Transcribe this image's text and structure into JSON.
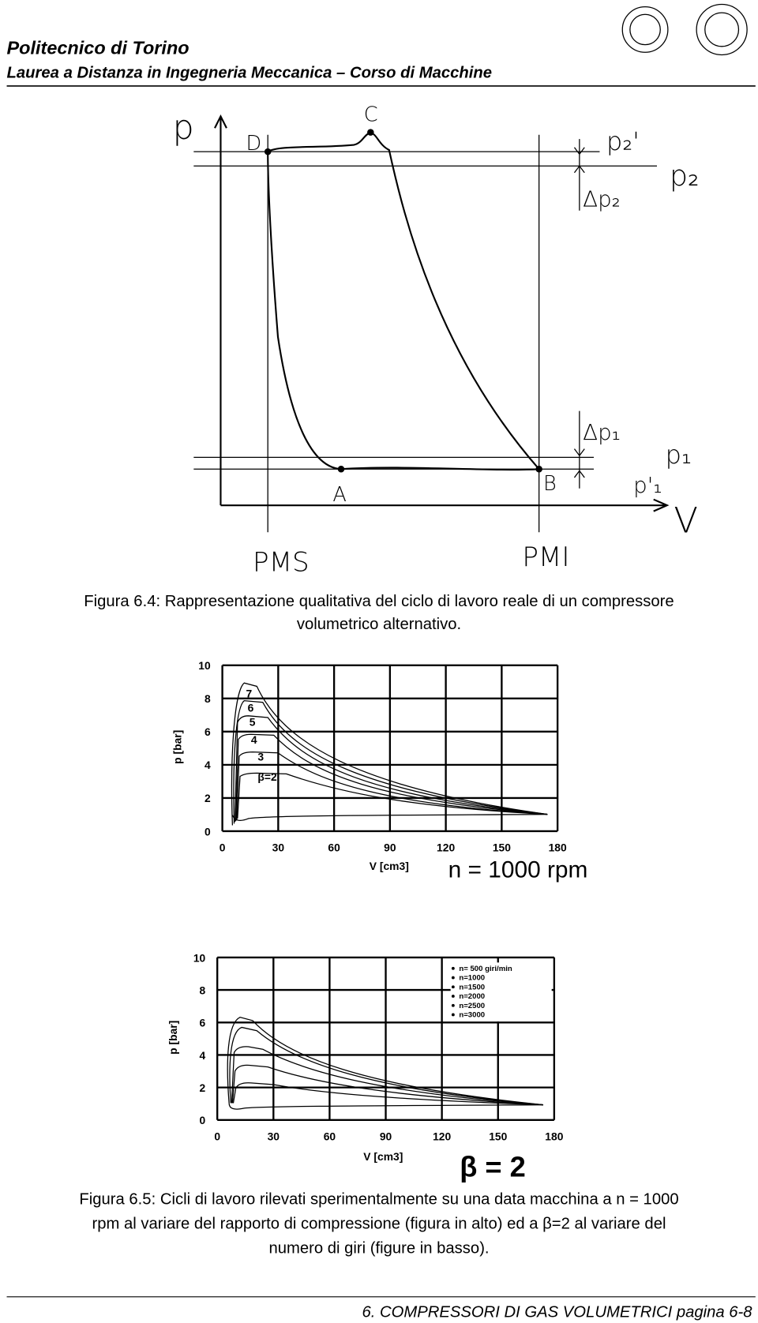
{
  "header": {
    "title": "Politecnico di Torino",
    "subtitle": "Laurea a Distanza in Ingegneria Meccanica – Corso di Macchine"
  },
  "figure_1": {
    "labels": {
      "p": "p",
      "D": "D",
      "C": "C",
      "p2_prime": "p₂'",
      "p2": "p₂",
      "dp2": "Δp₂",
      "dp1": "Δp₁",
      "p1": "p₁",
      "p1_prime": "p'₁",
      "A": "A",
      "B": "B",
      "V": "V",
      "PMS": "PMS",
      "PMI": "PMI"
    },
    "caption": [
      "Figura 6.4: Rappresentazione qualitativa del ciclo di lavoro reale di un compressore",
      "volumetrico alternativo."
    ]
  },
  "figure_2_top": {
    "y_label": "p [bar]",
    "x_label": "V [cm3]",
    "xlim": [
      0,
      180
    ],
    "ylim": [
      0,
      10
    ],
    "xticks": [
      0,
      30,
      60,
      90,
      120,
      150,
      180
    ],
    "yticks": [
      0,
      2,
      4,
      6,
      8,
      10
    ],
    "curve_labels": [
      "7",
      "6",
      "5",
      "4",
      "3",
      "β=2"
    ],
    "annotation": "n = 1000 rpm"
  },
  "figure_2_bottom": {
    "y_label": "p [bar]",
    "x_label": "V [cm3]",
    "xlim": [
      0,
      180
    ],
    "ylim": [
      0,
      10
    ],
    "xticks": [
      0,
      30,
      60,
      90,
      120,
      150,
      180
    ],
    "yticks": [
      0,
      2,
      4,
      6,
      8,
      10
    ],
    "legend": [
      "n= 500 giri/min",
      "n=1000",
      "n=1500",
      "n=2000",
      "n=2500",
      "n=3000"
    ],
    "annotation": "β = 2"
  },
  "caption_2": [
    "Figura 6.5: Cicli di lavoro rilevati sperimentalmente su una data macchina a n = 1000",
    "rpm al variare del rapporto di compressione (figura in alto) ed a β=2 al variare del",
    "numero di giri (figure in basso)."
  ],
  "footer": "6. COMPRESSORI DI GAS VOLUMETRICI pagina 6-8"
}
